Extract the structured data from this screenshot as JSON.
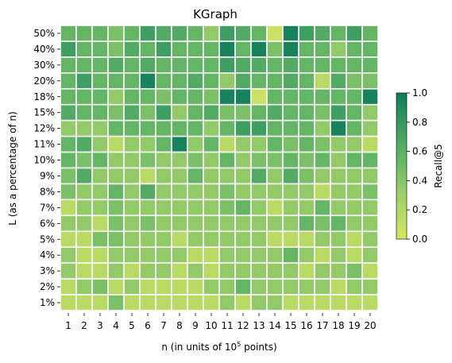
{
  "chart_data": {
    "type": "heatmap",
    "title": "KGraph",
    "xlabel_prefix": "n (in units of 10",
    "xlabel_sup": "5",
    "xlabel_suffix": " points)",
    "ylabel": "L (as a percentage of n)",
    "x_categories": [
      "1",
      "2",
      "3",
      "4",
      "5",
      "6",
      "7",
      "8",
      "9",
      "10",
      "11",
      "12",
      "13",
      "14",
      "15",
      "16",
      "17",
      "18",
      "19",
      "20"
    ],
    "y_categories": [
      "50%",
      "40%",
      "30%",
      "20%",
      "18%",
      "15%",
      "12%",
      "11%",
      "10%",
      "9%",
      "8%",
      "7%",
      "6%",
      "5%",
      "4%",
      "3%",
      "2%",
      "1%"
    ],
    "colorbar": {
      "label": "Recall@5",
      "range": [
        0.0,
        1.0
      ],
      "ticks": [
        "0.0",
        "0.2",
        "0.4",
        "0.6",
        "0.8",
        "1.0"
      ],
      "colors": [
        "#d4e561",
        "#a9d36a",
        "#6fbb67",
        "#3f9f62",
        "#0e7b5b"
      ]
    },
    "grid": "white cell borders",
    "values": [
      [
        0.55,
        0.55,
        0.55,
        0.45,
        0.55,
        0.75,
        0.65,
        0.65,
        0.55,
        0.35,
        0.75,
        0.65,
        0.55,
        0.05,
        0.95,
        0.75,
        0.65,
        0.55,
        0.75,
        0.55
      ],
      [
        0.75,
        0.55,
        0.55,
        0.45,
        0.65,
        0.55,
        0.75,
        0.55,
        0.55,
        0.55,
        0.95,
        0.55,
        0.95,
        0.45,
        0.95,
        0.55,
        0.55,
        0.35,
        0.55,
        0.55
      ],
      [
        0.55,
        0.55,
        0.55,
        0.65,
        0.55,
        0.65,
        0.55,
        0.55,
        0.55,
        0.55,
        0.75,
        0.65,
        0.65,
        0.55,
        0.65,
        0.55,
        0.55,
        0.55,
        0.55,
        0.55
      ],
      [
        0.55,
        0.75,
        0.55,
        0.55,
        0.55,
        0.95,
        0.55,
        0.55,
        0.65,
        0.55,
        0.35,
        0.65,
        0.55,
        0.55,
        0.65,
        0.55,
        0.15,
        0.65,
        0.45,
        0.45
      ],
      [
        0.55,
        0.55,
        0.55,
        0.35,
        0.55,
        0.55,
        0.45,
        0.55,
        0.55,
        0.45,
        0.95,
        0.95,
        0.05,
        0.55,
        0.55,
        0.55,
        0.55,
        0.55,
        0.55,
        0.95
      ],
      [
        0.65,
        0.55,
        0.55,
        0.45,
        0.65,
        0.45,
        0.75,
        0.35,
        0.55,
        0.65,
        0.45,
        0.45,
        0.55,
        0.65,
        0.55,
        0.55,
        0.45,
        0.75,
        0.55,
        0.35
      ],
      [
        0.35,
        0.35,
        0.35,
        0.55,
        0.55,
        0.55,
        0.55,
        0.55,
        0.55,
        0.35,
        0.55,
        0.75,
        0.75,
        0.55,
        0.55,
        0.55,
        0.35,
        0.95,
        0.55,
        0.35
      ],
      [
        0.55,
        0.65,
        0.35,
        0.15,
        0.35,
        0.35,
        0.55,
        0.95,
        0.35,
        0.55,
        0.15,
        0.35,
        0.35,
        0.55,
        0.45,
        0.55,
        0.45,
        0.35,
        0.35,
        0.15
      ],
      [
        0.55,
        0.45,
        0.55,
        0.35,
        0.35,
        0.45,
        0.35,
        0.35,
        0.45,
        0.35,
        0.55,
        0.35,
        0.45,
        0.45,
        0.55,
        0.45,
        0.55,
        0.35,
        0.55,
        0.55
      ],
      [
        0.45,
        0.65,
        0.35,
        0.35,
        0.35,
        0.15,
        0.35,
        0.35,
        0.55,
        0.35,
        0.35,
        0.35,
        0.65,
        0.35,
        0.65,
        0.45,
        0.35,
        0.35,
        0.35,
        0.35
      ],
      [
        0.45,
        0.35,
        0.35,
        0.55,
        0.35,
        0.65,
        0.35,
        0.35,
        0.35,
        0.35,
        0.45,
        0.35,
        0.35,
        0.35,
        0.35,
        0.35,
        0.15,
        0.35,
        0.35,
        0.45
      ],
      [
        0.15,
        0.35,
        0.35,
        0.45,
        0.35,
        0.35,
        0.35,
        0.35,
        0.35,
        0.35,
        0.45,
        0.55,
        0.35,
        0.15,
        0.35,
        0.35,
        0.55,
        0.35,
        0.35,
        0.35
      ],
      [
        0.35,
        0.35,
        0.15,
        0.45,
        0.35,
        0.45,
        0.35,
        0.35,
        0.35,
        0.35,
        0.35,
        0.35,
        0.35,
        0.35,
        0.35,
        0.55,
        0.45,
        0.55,
        0.35,
        0.35
      ],
      [
        0.15,
        0.15,
        0.45,
        0.45,
        0.35,
        0.35,
        0.35,
        0.15,
        0.35,
        0.35,
        0.35,
        0.35,
        0.35,
        0.15,
        0.15,
        0.15,
        0.35,
        0.35,
        0.15,
        0.35
      ],
      [
        0.35,
        0.15,
        0.15,
        0.35,
        0.35,
        0.35,
        0.35,
        0.35,
        0.15,
        0.15,
        0.35,
        0.35,
        0.35,
        0.35,
        0.55,
        0.35,
        0.15,
        0.35,
        0.15,
        0.35
      ],
      [
        0.35,
        0.15,
        0.15,
        0.35,
        0.15,
        0.35,
        0.35,
        0.15,
        0.35,
        0.15,
        0.35,
        0.35,
        0.35,
        0.35,
        0.35,
        0.15,
        0.35,
        0.35,
        0.45,
        0.15
      ],
      [
        0.15,
        0.35,
        0.45,
        0.15,
        0.35,
        0.15,
        0.15,
        0.15,
        0.15,
        0.35,
        0.35,
        0.55,
        0.35,
        0.35,
        0.35,
        0.35,
        0.35,
        0.15,
        0.35,
        0.35
      ],
      [
        0.15,
        0.15,
        0.15,
        0.45,
        0.15,
        0.15,
        0.15,
        0.15,
        0.15,
        0.15,
        0.35,
        0.15,
        0.35,
        0.35,
        0.15,
        0.15,
        0.15,
        0.15,
        0.15,
        0.15
      ]
    ]
  }
}
